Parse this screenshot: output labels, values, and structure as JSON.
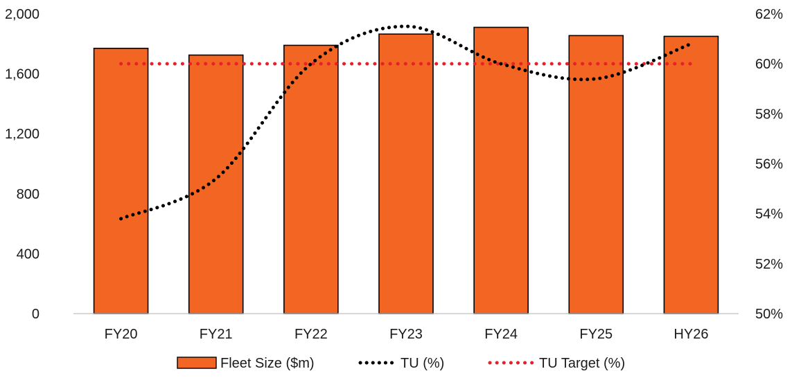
{
  "chart_data": {
    "type": "bar",
    "categories": [
      "FY20",
      "FY21",
      "FY22",
      "FY23",
      "FY24",
      "FY25",
      "HY26"
    ],
    "series": [
      {
        "name": "Fleet Size ($m)",
        "type": "bar",
        "axis": "left",
        "color": "#F26522",
        "values": [
          1770,
          1725,
          1790,
          1865,
          1910,
          1855,
          1850
        ]
      },
      {
        "name": "TU (%)",
        "type": "line",
        "axis": "right",
        "color": "#000000",
        "style": "dotted",
        "values": [
          53.8,
          55.4,
          60.0,
          61.5,
          60.0,
          59.4,
          60.8
        ]
      },
      {
        "name": "TU Target (%)",
        "type": "line",
        "axis": "right",
        "color": "#E8202A",
        "style": "dotted",
        "values": [
          60,
          60,
          60,
          60,
          60,
          60,
          60
        ]
      }
    ],
    "left_axis": {
      "ylim": [
        0,
        2000
      ],
      "ticks": [
        0,
        400,
        800,
        1200,
        1600,
        2000
      ],
      "tick_labels": [
        "0",
        "400",
        "800",
        "1,200",
        "1,600",
        "2,000"
      ]
    },
    "right_axis": {
      "ylim": [
        50,
        62
      ],
      "ticks": [
        50,
        52,
        54,
        56,
        58,
        60,
        62
      ],
      "tick_labels": [
        "50%",
        "52%",
        "54%",
        "56%",
        "58%",
        "60%",
        "62%"
      ]
    },
    "legend": {
      "position": "bottom",
      "entries": [
        "Fleet Size ($m)",
        "TU (%)",
        "TU Target (%)"
      ]
    },
    "grid": false,
    "title": "",
    "xlabel": "",
    "ylabel": ""
  }
}
